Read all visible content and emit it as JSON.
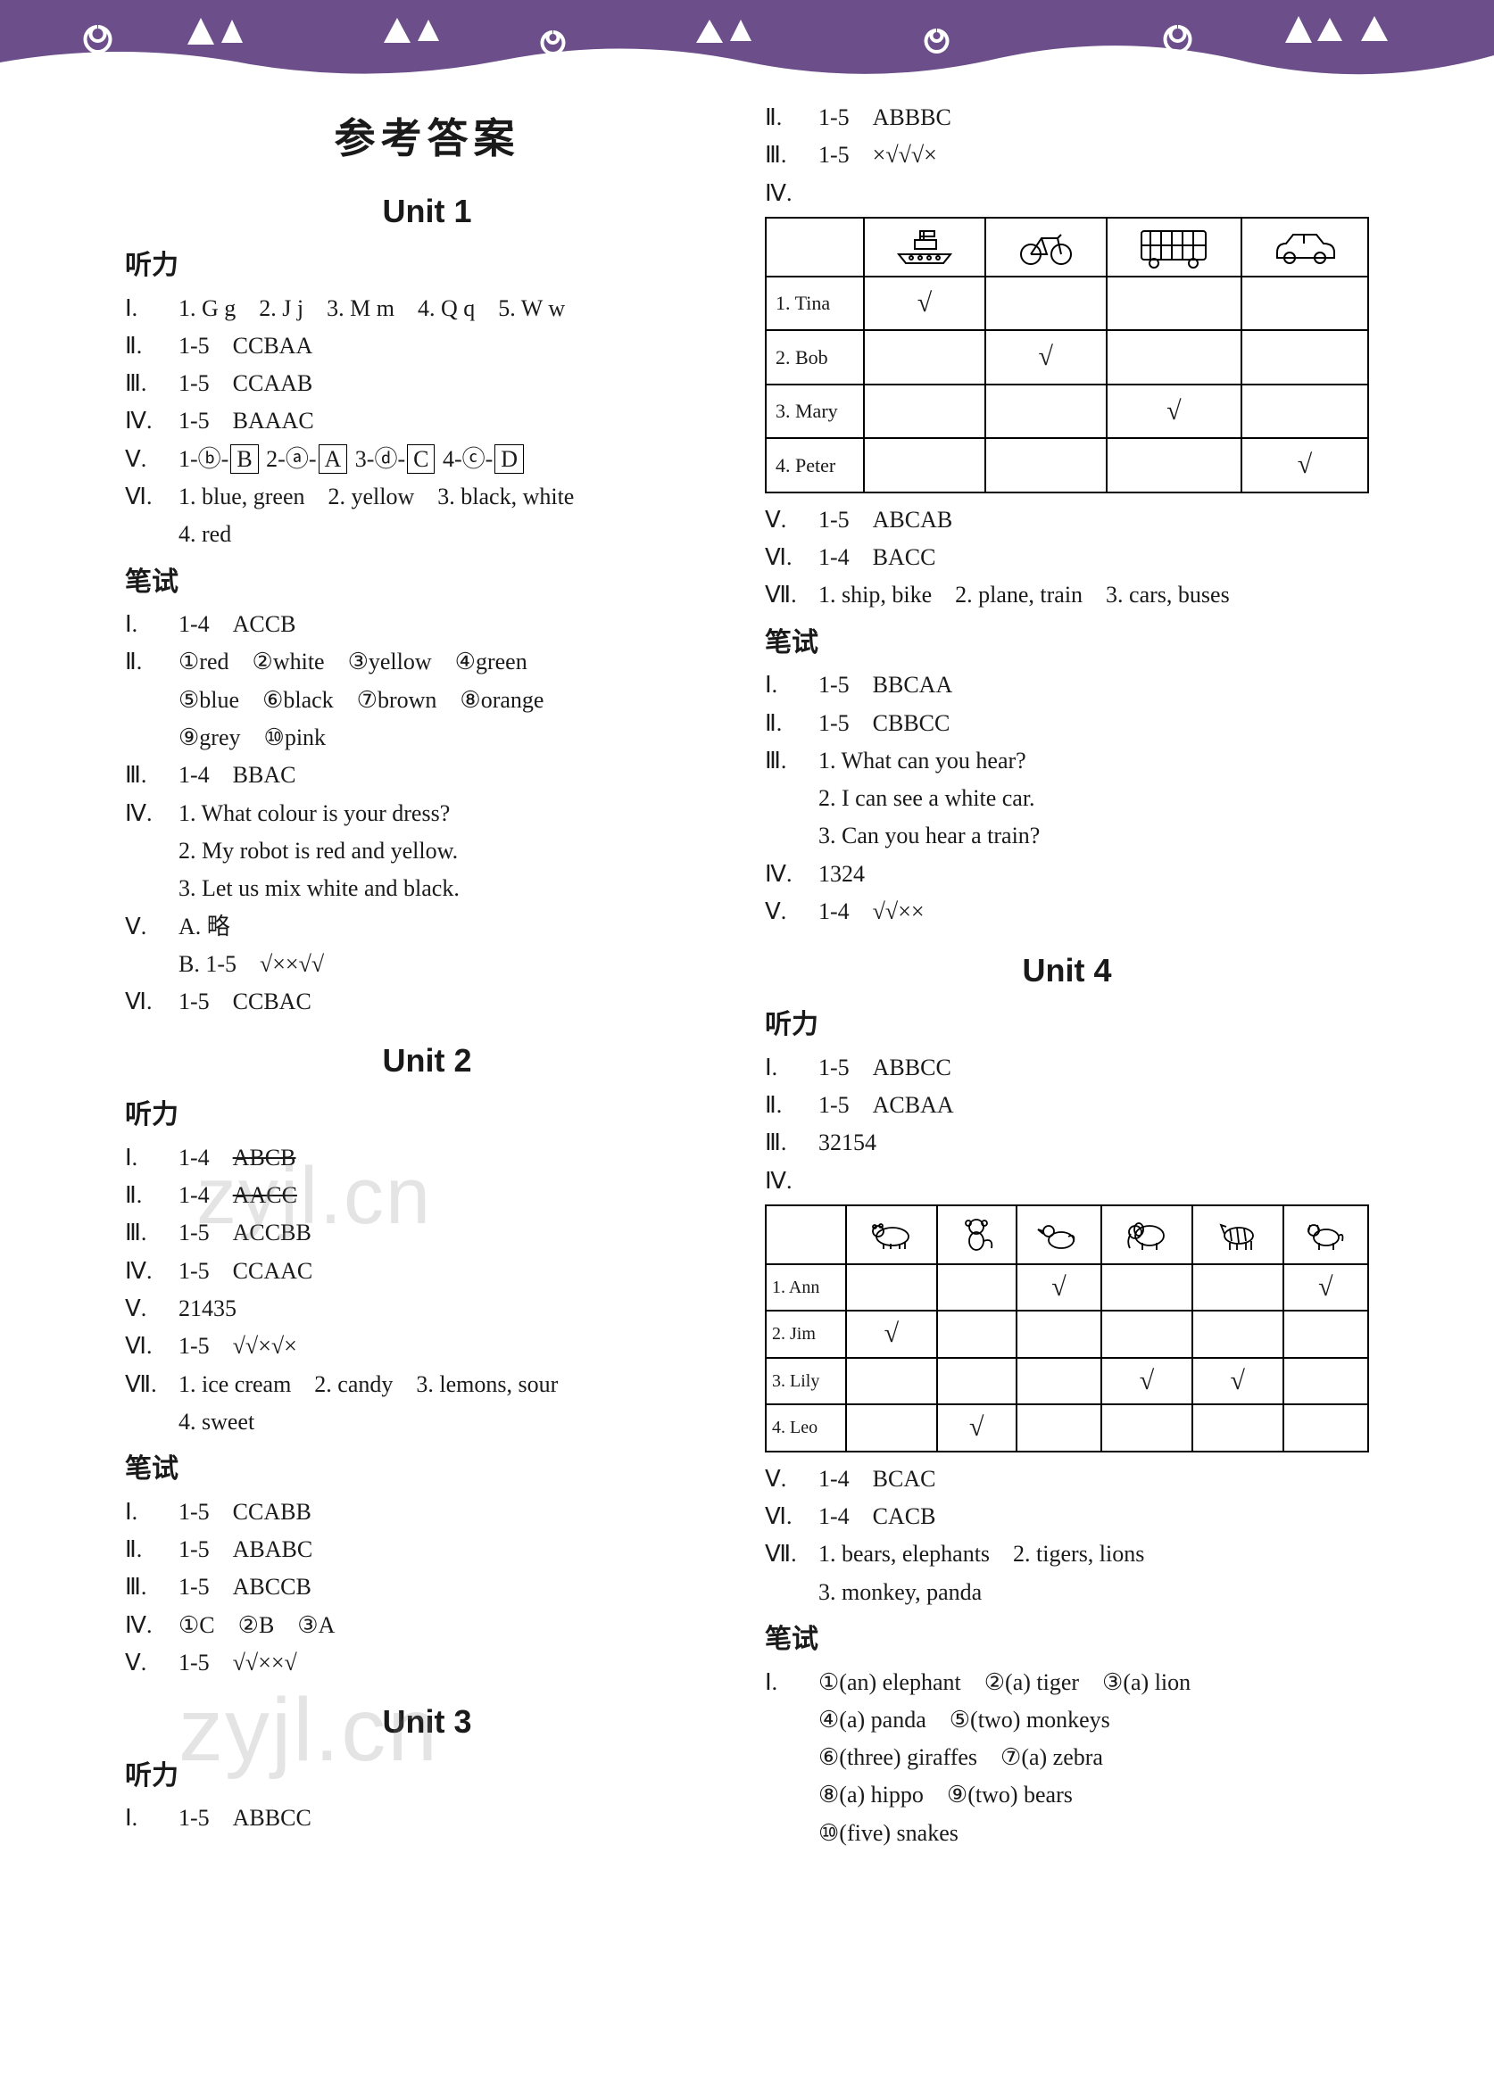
{
  "banner": {
    "bg": "#6b4e8a",
    "accent": "#ffffff"
  },
  "title": "参考答案",
  "watermarks": [
    "zyjl.cn",
    "zyjl.cn"
  ],
  "left": {
    "unit1": {
      "heading": "Unit 1",
      "listening": {
        "label": "听力",
        "rows": [
          {
            "num": "Ⅰ.",
            "text": "1. G g　2. J j　3. M m　4. Q q　5. W w"
          },
          {
            "num": "Ⅱ.",
            "text": "1-5　CCBAA"
          },
          {
            "num": "Ⅲ.",
            "text": "1-5　CCAAB"
          },
          {
            "num": "Ⅳ.",
            "text": "1-5　BAAAC"
          },
          {
            "num": "Ⅴ.",
            "pairs": [
              {
                "a": "1-ⓑ-",
                "b": "B"
              },
              {
                "a": " 2-ⓐ-",
                "b": "A"
              },
              {
                "a": " 3-ⓓ-",
                "b": "C"
              },
              {
                "a": " 4-ⓒ-",
                "b": "D"
              }
            ]
          },
          {
            "num": "Ⅵ.",
            "text": "1. blue, green　2. yellow　3. black, white"
          },
          {
            "num": "",
            "text": "4. red"
          }
        ]
      },
      "written": {
        "label": "笔试",
        "rows": [
          {
            "num": "Ⅰ.",
            "text": "1-4　ACCB"
          },
          {
            "num": "Ⅱ.",
            "text": "①red　②white　③yellow　④green"
          },
          {
            "num": "",
            "text": "⑤blue　⑥black　⑦brown　⑧orange"
          },
          {
            "num": "",
            "text": "⑨grey　⑩pink"
          },
          {
            "num": "Ⅲ.",
            "text": "1-4　BBAC"
          },
          {
            "num": "Ⅳ.",
            "text": "1. What colour is your dress?"
          },
          {
            "num": "",
            "text": "2. My robot is red and yellow."
          },
          {
            "num": "",
            "text": "3. Let us mix white and black."
          },
          {
            "num": "Ⅴ.",
            "text": "A. 略"
          },
          {
            "num": "",
            "text": "B. 1-5　√××√√"
          },
          {
            "num": "Ⅵ.",
            "text": "1-5　CCBAC"
          }
        ]
      }
    },
    "unit2": {
      "heading": "Unit 2",
      "listening": {
        "label": "听力",
        "rows": [
          {
            "num": "Ⅰ.",
            "struck": "ABCB",
            "pre": "1-4　"
          },
          {
            "num": "Ⅱ.",
            "struck": "AACC",
            "pre": "1-4　"
          },
          {
            "num": "Ⅲ.",
            "text": "1-5　ACCBB"
          },
          {
            "num": "Ⅳ.",
            "text": "1-5　CCAAC"
          },
          {
            "num": "Ⅴ.",
            "text": "21435"
          },
          {
            "num": "Ⅵ.",
            "text": "1-5　√√×√×"
          },
          {
            "num": "Ⅶ.",
            "text": "1. ice cream　2. candy　3. lemons, sour"
          },
          {
            "num": "",
            "text": "4. sweet"
          }
        ]
      },
      "written": {
        "label": "笔试",
        "rows": [
          {
            "num": "Ⅰ.",
            "text": "1-5　CCABB"
          },
          {
            "num": "Ⅱ.",
            "text": "1-5　ABABC"
          },
          {
            "num": "Ⅲ.",
            "text": "1-5　ABCCB"
          },
          {
            "num": "Ⅳ.",
            "text": "①C　②B　③A"
          },
          {
            "num": "Ⅴ.",
            "text": "1-5　√√××√"
          }
        ]
      }
    },
    "unit3": {
      "heading": "Unit 3",
      "listening": {
        "label": "听力",
        "rows": [
          {
            "num": "Ⅰ.",
            "text": "1-5　ABBCC"
          }
        ]
      }
    }
  },
  "right": {
    "top": {
      "rows": [
        {
          "num": "Ⅱ.",
          "text": "1-5　ABBBC"
        },
        {
          "num": "Ⅲ.",
          "text": "1-5　×√√√×"
        },
        {
          "num": "Ⅳ.",
          "text": ""
        }
      ],
      "table": {
        "icons": [
          "ship",
          "bicycle",
          "bus",
          "car"
        ],
        "rows": [
          {
            "name": "1. Tina",
            "marks": [
              "√",
              "",
              "",
              ""
            ]
          },
          {
            "name": "2. Bob",
            "marks": [
              "",
              "√",
              "",
              ""
            ]
          },
          {
            "name": "3. Mary",
            "marks": [
              "",
              "",
              "√",
              ""
            ]
          },
          {
            "name": "4. Peter",
            "marks": [
              "",
              "",
              "",
              "√"
            ]
          }
        ]
      },
      "after": [
        {
          "num": "Ⅴ.",
          "text": "1-5　ABCAB"
        },
        {
          "num": "Ⅵ.",
          "text": "1-4　BACC"
        },
        {
          "num": "Ⅶ.",
          "text": "1. ship, bike　2. plane, train　3. cars, buses"
        }
      ]
    },
    "written3": {
      "label": "笔试",
      "rows": [
        {
          "num": "Ⅰ.",
          "text": "1-5　BBCAA"
        },
        {
          "num": "Ⅱ.",
          "text": "1-5　CBBCC"
        },
        {
          "num": "Ⅲ.",
          "text": "1. What can you hear?"
        },
        {
          "num": "",
          "text": "2. I can see a white car."
        },
        {
          "num": "",
          "text": "3. Can you hear a train?"
        },
        {
          "num": "Ⅳ.",
          "text": "1324"
        },
        {
          "num": "Ⅴ.",
          "text": "1-4　√√××"
        }
      ]
    },
    "unit4": {
      "heading": "Unit 4",
      "listening": {
        "label": "听力",
        "rows": [
          {
            "num": "Ⅰ.",
            "text": "1-5　ABBCC"
          },
          {
            "num": "Ⅱ.",
            "text": "1-5　ACBAA"
          },
          {
            "num": "Ⅲ.",
            "text": "32154"
          },
          {
            "num": "Ⅳ.",
            "text": ""
          }
        ],
        "table": {
          "icons": [
            "polar-bear",
            "monkey",
            "duck",
            "elephant",
            "zebra",
            "dog"
          ],
          "rows": [
            {
              "name": "1. Ann",
              "marks": [
                "",
                "",
                "√",
                "",
                "",
                "√"
              ]
            },
            {
              "name": "2. Jim",
              "marks": [
                "√",
                "",
                "",
                "",
                "",
                ""
              ]
            },
            {
              "name": "3. Lily",
              "marks": [
                "",
                "",
                "",
                "√",
                "√",
                ""
              ]
            },
            {
              "name": "4. Leo",
              "marks": [
                "",
                "√",
                "",
                "",
                "",
                ""
              ]
            }
          ]
        },
        "after": [
          {
            "num": "Ⅴ.",
            "text": "1-4　BCAC"
          },
          {
            "num": "Ⅵ.",
            "text": "1-4　CACB"
          },
          {
            "num": "Ⅶ.",
            "text": "1. bears, elephants　2. tigers, lions"
          },
          {
            "num": "",
            "text": "3. monkey, panda"
          }
        ]
      },
      "written": {
        "label": "笔试",
        "rows": [
          {
            "num": "Ⅰ.",
            "text": "①(an) elephant　②(a) tiger　③(a) lion"
          },
          {
            "num": "",
            "text": "④(a) panda　⑤(two) monkeys"
          },
          {
            "num": "",
            "text": "⑥(three) giraffes　⑦(a) zebra"
          },
          {
            "num": "",
            "text": "⑧(a) hippo　⑨(two) bears"
          },
          {
            "num": "",
            "text": "⑩(five) snakes"
          }
        ]
      }
    }
  }
}
